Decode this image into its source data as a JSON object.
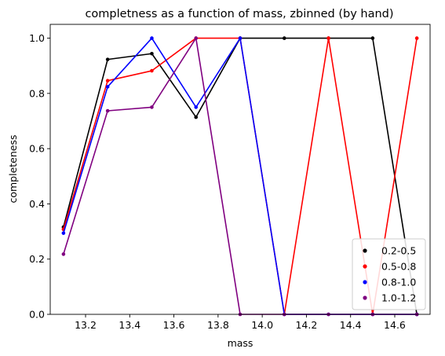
{
  "chart_data": {
    "type": "line",
    "title": "completness as a function of mass, zbinned (by hand)",
    "xlabel": "mass",
    "ylabel": "completeness",
    "xlim": [
      13.04,
      14.76
    ],
    "ylim": [
      0.0,
      1.05
    ],
    "xticks": [
      "13.2",
      "13.4",
      "13.6",
      "13.8",
      "14.0",
      "14.2",
      "14.4",
      "14.6"
    ],
    "yticks": [
      "0.0",
      "0.2",
      "0.4",
      "0.6",
      "0.8",
      "1.0"
    ],
    "grid": false,
    "legend_position": "bottom-right",
    "x": [
      13.1,
      13.3,
      13.5,
      13.7,
      13.9,
      14.1,
      14.3,
      14.5,
      14.7
    ],
    "series": [
      {
        "name": "0.2-0.5",
        "color": "#000000",
        "values": [
          0.316,
          0.923,
          0.944,
          0.714,
          1.0,
          1.0,
          1.0,
          1.0,
          0.0
        ]
      },
      {
        "name": "0.5-0.8",
        "color": "#ff0000",
        "values": [
          0.308,
          0.846,
          0.882,
          1.0,
          1.0,
          0.0,
          1.0,
          0.0,
          1.0
        ]
      },
      {
        "name": "0.8-1.0",
        "color": "#0000ff",
        "values": [
          0.294,
          0.824,
          1.0,
          0.75,
          1.0,
          0.0,
          0.0,
          0.0,
          0.0
        ]
      },
      {
        "name": "1.0-1.2",
        "color": "#800080",
        "values": [
          0.218,
          0.737,
          0.75,
          1.0,
          0.0,
          0.0,
          0.0,
          0.0,
          0.0
        ]
      }
    ]
  }
}
